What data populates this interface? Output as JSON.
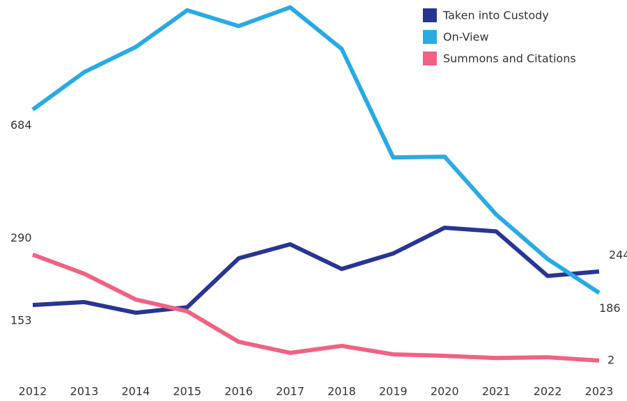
{
  "chart_data": {
    "type": "line",
    "categories": [
      "2012",
      "2013",
      "2014",
      "2015",
      "2016",
      "2017",
      "2018",
      "2019",
      "2020",
      "2021",
      "2022",
      "2023"
    ],
    "series": [
      {
        "name": "Taken into Custody",
        "color": "#283593",
        "values": [
          153,
          161,
          132,
          147,
          280,
          318,
          251,
          293,
          363,
          353,
          232,
          244
        ]
      },
      {
        "name": "On-View",
        "color": "#29abe2",
        "values": [
          684,
          786,
          854,
          954,
          911,
          962,
          849,
          554,
          556,
          399,
          278,
          186
        ]
      },
      {
        "name": "Summons and Citations",
        "color": "#f06283",
        "values": [
          290,
          238,
          168,
          136,
          53,
          23,
          42,
          19,
          15,
          9,
          11,
          2
        ]
      }
    ],
    "ylim": [
      0,
      980
    ],
    "legend": "upper right"
  }
}
